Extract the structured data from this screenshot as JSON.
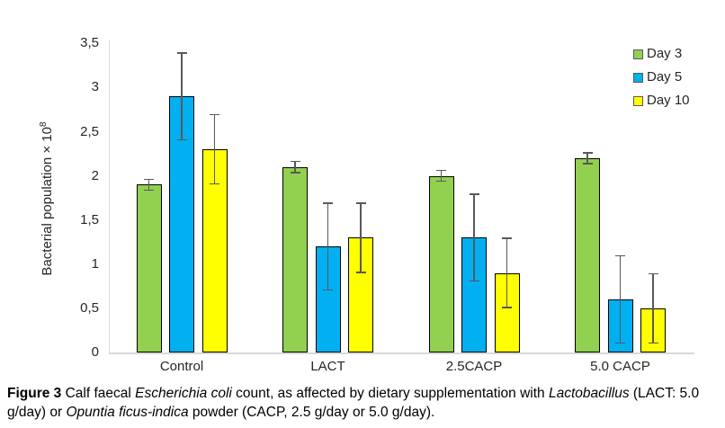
{
  "chart_data": {
    "type": "bar",
    "categories": [
      "Control",
      "LACT",
      "2.5CACP",
      "5.0 CACP"
    ],
    "series": [
      {
        "name": "Day 3",
        "color": "#92D050",
        "values": [
          1.9,
          2.1,
          2.0,
          2.2
        ],
        "errors": [
          0.07,
          0.07,
          0.07,
          0.07
        ]
      },
      {
        "name": "Day 5",
        "color": "#00B0F0",
        "values": [
          2.9,
          1.2,
          1.3,
          0.6
        ],
        "errors": [
          0.5,
          0.5,
          0.5,
          0.5
        ]
      },
      {
        "name": "Day 10",
        "color": "#FFFF00",
        "values": [
          2.3,
          1.3,
          0.9,
          0.5
        ],
        "errors": [
          0.4,
          0.4,
          0.4,
          0.4
        ]
      }
    ],
    "xlabel": "",
    "ylabel_text": "Bacterial population × 10",
    "ylabel_sup": "8",
    "ylim": [
      0,
      3.5
    ],
    "ytick_step": 0.5,
    "ytick_labels": [
      "0",
      "0,5",
      "1",
      "1,5",
      "2",
      "2,5",
      "3",
      "3,5"
    ],
    "decimal_separator": ",",
    "grid": false,
    "legend_position": "top-right",
    "bar_border_color": "#000000",
    "error_bar_color": "#595959",
    "axis_line_color": "#D9D9D9"
  },
  "caption": {
    "segments": [
      {
        "text": "Figure 3",
        "bold": true
      },
      {
        "text": " Calf faecal "
      },
      {
        "text": "Escherichia coli",
        "italic": true
      },
      {
        "text": " count, as affected by dietary supplementation with "
      },
      {
        "text": "Lactobacillus",
        "italic": true
      },
      {
        "text": " (LACT: 5.0 g/day) or "
      },
      {
        "text": "Opuntia ficus-indica",
        "italic": true
      },
      {
        "text": " powder (CACP, 2.5 g/day or 5.0 g/day)."
      }
    ]
  }
}
